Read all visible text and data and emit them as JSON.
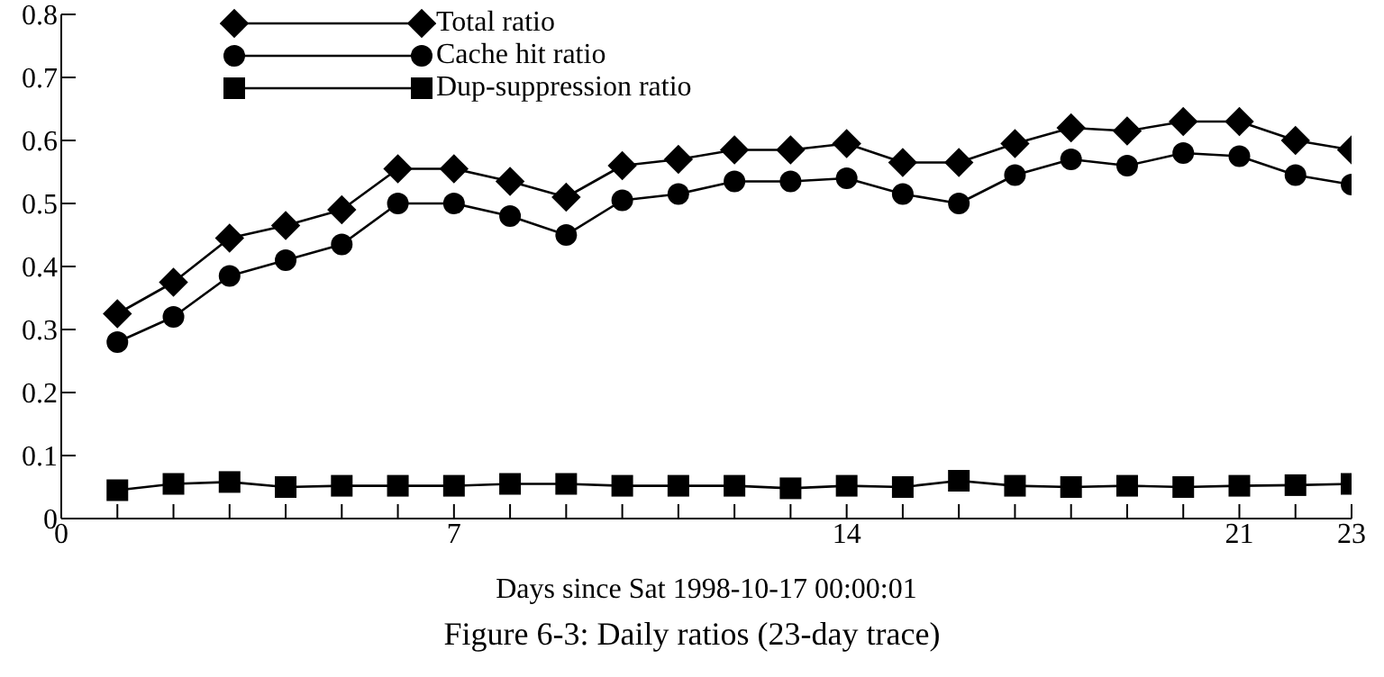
{
  "chart_data": {
    "type": "line",
    "title": "Figure 6-3:  Daily ratios (23-day trace)",
    "xlabel": "Days since Sat 1998-10-17 00:00:01",
    "x": [
      1,
      2,
      3,
      4,
      5,
      6,
      7,
      8,
      9,
      10,
      11,
      12,
      13,
      14,
      15,
      16,
      17,
      18,
      19,
      20,
      21,
      22,
      23
    ],
    "series": [
      {
        "name": "Total ratio",
        "color": "#000000",
        "marker": "diamond",
        "values": [
          0.325,
          0.375,
          0.445,
          0.465,
          0.49,
          0.555,
          0.555,
          0.535,
          0.51,
          0.56,
          0.57,
          0.585,
          0.585,
          0.595,
          0.565,
          0.565,
          0.595,
          0.62,
          0.615,
          0.63,
          0.63,
          0.6,
          0.585
        ]
      },
      {
        "name": "Cache hit ratio",
        "color": "#000000",
        "marker": "circle",
        "values": [
          0.28,
          0.32,
          0.385,
          0.41,
          0.435,
          0.5,
          0.5,
          0.48,
          0.45,
          0.505,
          0.515,
          0.535,
          0.535,
          0.54,
          0.515,
          0.5,
          0.545,
          0.57,
          0.56,
          0.58,
          0.575,
          0.545,
          0.53
        ]
      },
      {
        "name": "Dup-suppression ratio",
        "color": "#000000",
        "marker": "square",
        "values": [
          0.045,
          0.055,
          0.058,
          0.05,
          0.052,
          0.052,
          0.052,
          0.055,
          0.055,
          0.052,
          0.052,
          0.052,
          0.048,
          0.052,
          0.05,
          0.06,
          0.052,
          0.05,
          0.052,
          0.05,
          0.052,
          0.053,
          0.055
        ]
      }
    ],
    "xlim": [
      0,
      23
    ],
    "xticks": [
      0,
      {
        "value": 1,
        "label": null
      },
      {
        "value": 2,
        "label": null
      },
      {
        "value": 3,
        "label": null
      },
      {
        "value": 4,
        "label": null
      },
      {
        "value": 5,
        "label": null
      },
      {
        "value": 6,
        "label": null
      },
      7,
      {
        "value": 8,
        "label": null
      },
      {
        "value": 9,
        "label": null
      },
      {
        "value": 10,
        "label": null
      },
      {
        "value": 11,
        "label": null
      },
      {
        "value": 12,
        "label": null
      },
      {
        "value": 13,
        "label": null
      },
      14,
      {
        "value": 15,
        "label": null
      },
      {
        "value": 16,
        "label": null
      },
      {
        "value": 17,
        "label": null
      },
      {
        "value": 18,
        "label": null
      },
      {
        "value": 19,
        "label": null
      },
      {
        "value": 20,
        "label": null
      },
      21,
      {
        "value": 22,
        "label": null
      },
      23
    ],
    "ylim": [
      0,
      0.8
    ],
    "yticks": [
      0,
      0.1,
      0.2,
      0.3,
      0.4,
      0.5,
      0.6,
      0.7,
      0.8
    ],
    "grid": false,
    "legend": "top left",
    "line_style": "solid"
  }
}
